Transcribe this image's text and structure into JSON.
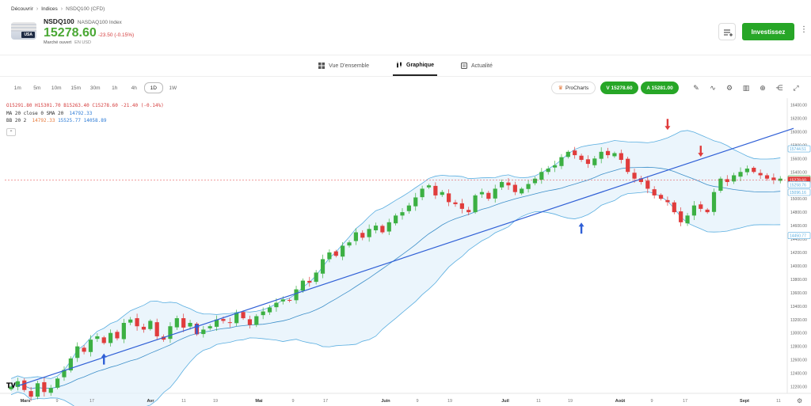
{
  "breadcrumb": {
    "items": [
      "Découvrir",
      "Indices",
      "NSDQ100 (CFD)"
    ]
  },
  "instrument": {
    "symbol": "NSDQ100",
    "full_name": "NASDAQ100 Index",
    "price": "15278.60",
    "change": "-23.50 (-0.15%)",
    "flag_label": "USA",
    "market_status": "Marché ouvert",
    "currency": "EN USD"
  },
  "header": {
    "invest_label": "Investissez"
  },
  "tabs": [
    {
      "label": "Vue D'ensemble",
      "icon": "grid-icon"
    },
    {
      "label": "Graphique",
      "icon": "candles-icon",
      "active": true
    },
    {
      "label": "Actualité",
      "icon": "news-icon"
    }
  ],
  "timeframes": [
    "1m",
    "5m",
    "10m",
    "15m",
    "30m",
    "1h",
    "4h",
    "1D",
    "1W"
  ],
  "selected_timeframe": "1D",
  "toolbar": {
    "prochart_label": "ProCharts",
    "sell_label": "V 15278.60",
    "buy_label": "A 15281.00",
    "tool_icons": [
      "pencil-icon",
      "indicators-icon",
      "settings-icon",
      "chart-type-icon",
      "add-icon",
      "share-icon",
      "fullscreen-icon"
    ]
  },
  "legend": {
    "ohlc": "O15291.80  H15301.70  B15263.40  C15278.60  -21.40 (-0.14%)",
    "ma_label": "MA 20 close 0 SMA 20",
    "ma_value": "14792.33",
    "bb_label": "BB 20 2",
    "bb_values": [
      "14792.33",
      "15525.77",
      "14058.89"
    ]
  },
  "colors": {
    "up": "#3cb043",
    "down": "#e03c3c",
    "band": "#5aaee0",
    "trend": "#2f5fd6",
    "accent": "#27a627"
  },
  "chart_data": {
    "type": "candlestick",
    "x_labels": [
      "Mars",
      "9",
      "17",
      "Avr",
      "11",
      "19",
      "Mai",
      "9",
      "17",
      "Juin",
      "9",
      "19",
      "Juil",
      "11",
      "19",
      "Août",
      "9",
      "17",
      "Sept",
      "11"
    ],
    "y_ticks": [
      "16400.00",
      "16200.00",
      "16000.00",
      "15800.00",
      "15600.00",
      "15400.00",
      "15200.00",
      "15000.00",
      "14800.00",
      "14600.00",
      "14400.00",
      "14200.00",
      "14000.00",
      "13800.00",
      "13600.00",
      "13400.00",
      "13200.00",
      "13000.00",
      "12800.00",
      "12600.00",
      "12400.00",
      "12200.00"
    ],
    "ylim": [
      12100,
      16500
    ],
    "price_tags": [
      {
        "value": "15744.51",
        "y": 15744.51,
        "color": "#5aaee0"
      },
      {
        "value": "15297.95",
        "y": 15297.95,
        "color": "#3cb043"
      },
      {
        "value": "15278.60",
        "y": 15278.6,
        "color": "#e03c3c"
      },
      {
        "value": "15258.76",
        "y": 15210,
        "color": "#5aaee0"
      },
      {
        "value": "15096.16",
        "y": 15096.16,
        "color": "#5aaee0"
      },
      {
        "value": "14450.77",
        "y": 14450.77,
        "color": "#5aaee0"
      }
    ],
    "closes": [
      12200,
      12280,
      12150,
      12050,
      12250,
      12120,
      12180,
      12320,
      12450,
      12620,
      12800,
      12720,
      12900,
      12950,
      12850,
      13000,
      12920,
      13150,
      13200,
      13100,
      13050,
      13180,
      12950,
      12900,
      13100,
      13220,
      13080,
      13150,
      12980,
      13050,
      13100,
      13200,
      13180,
      13150,
      13300,
      13220,
      13120,
      13250,
      13320,
      13380,
      13450,
      13500,
      13480,
      13650,
      13780,
      13750,
      13900,
      14100,
      14200,
      14150,
      14300,
      14350,
      14500,
      14420,
      14550,
      14600,
      14500,
      14650,
      14750,
      14800,
      14900,
      15020,
      15150,
      15200,
      15050,
      15100,
      14950,
      14920,
      14850,
      14800,
      15050,
      15100,
      15000,
      15150,
      15250,
      15200,
      15100,
      15150,
      15220,
      15300,
      15400,
      15450,
      15500,
      15620,
      15700,
      15650,
      15580,
      15520,
      15600,
      15700,
      15650,
      15680,
      15580,
      15400,
      15300,
      15250,
      15150,
      15050,
      15000,
      14950,
      14800,
      14650,
      14750,
      14900,
      14850,
      14800,
      15100,
      15300,
      15250,
      15350,
      15400,
      15450,
      15400,
      15350,
      15300,
      15280,
      15300
    ],
    "trend_line": {
      "from": [
        1,
        12210
      ],
      "to": [
        118,
        16050
      ]
    },
    "arrows": [
      {
        "index": 14,
        "value": 12600,
        "dir": "up",
        "color": "#2f5fd6"
      },
      {
        "index": 28,
        "value": 13050,
        "dir": "up",
        "color": "#2f5fd6"
      },
      {
        "index": 86,
        "value": 14550,
        "dir": "up",
        "color": "#2f5fd6"
      },
      {
        "index": 99,
        "value": 16120,
        "dir": "down",
        "color": "#e03c3c"
      },
      {
        "index": 104,
        "value": 15720,
        "dir": "down",
        "color": "#e03c3c"
      }
    ]
  }
}
